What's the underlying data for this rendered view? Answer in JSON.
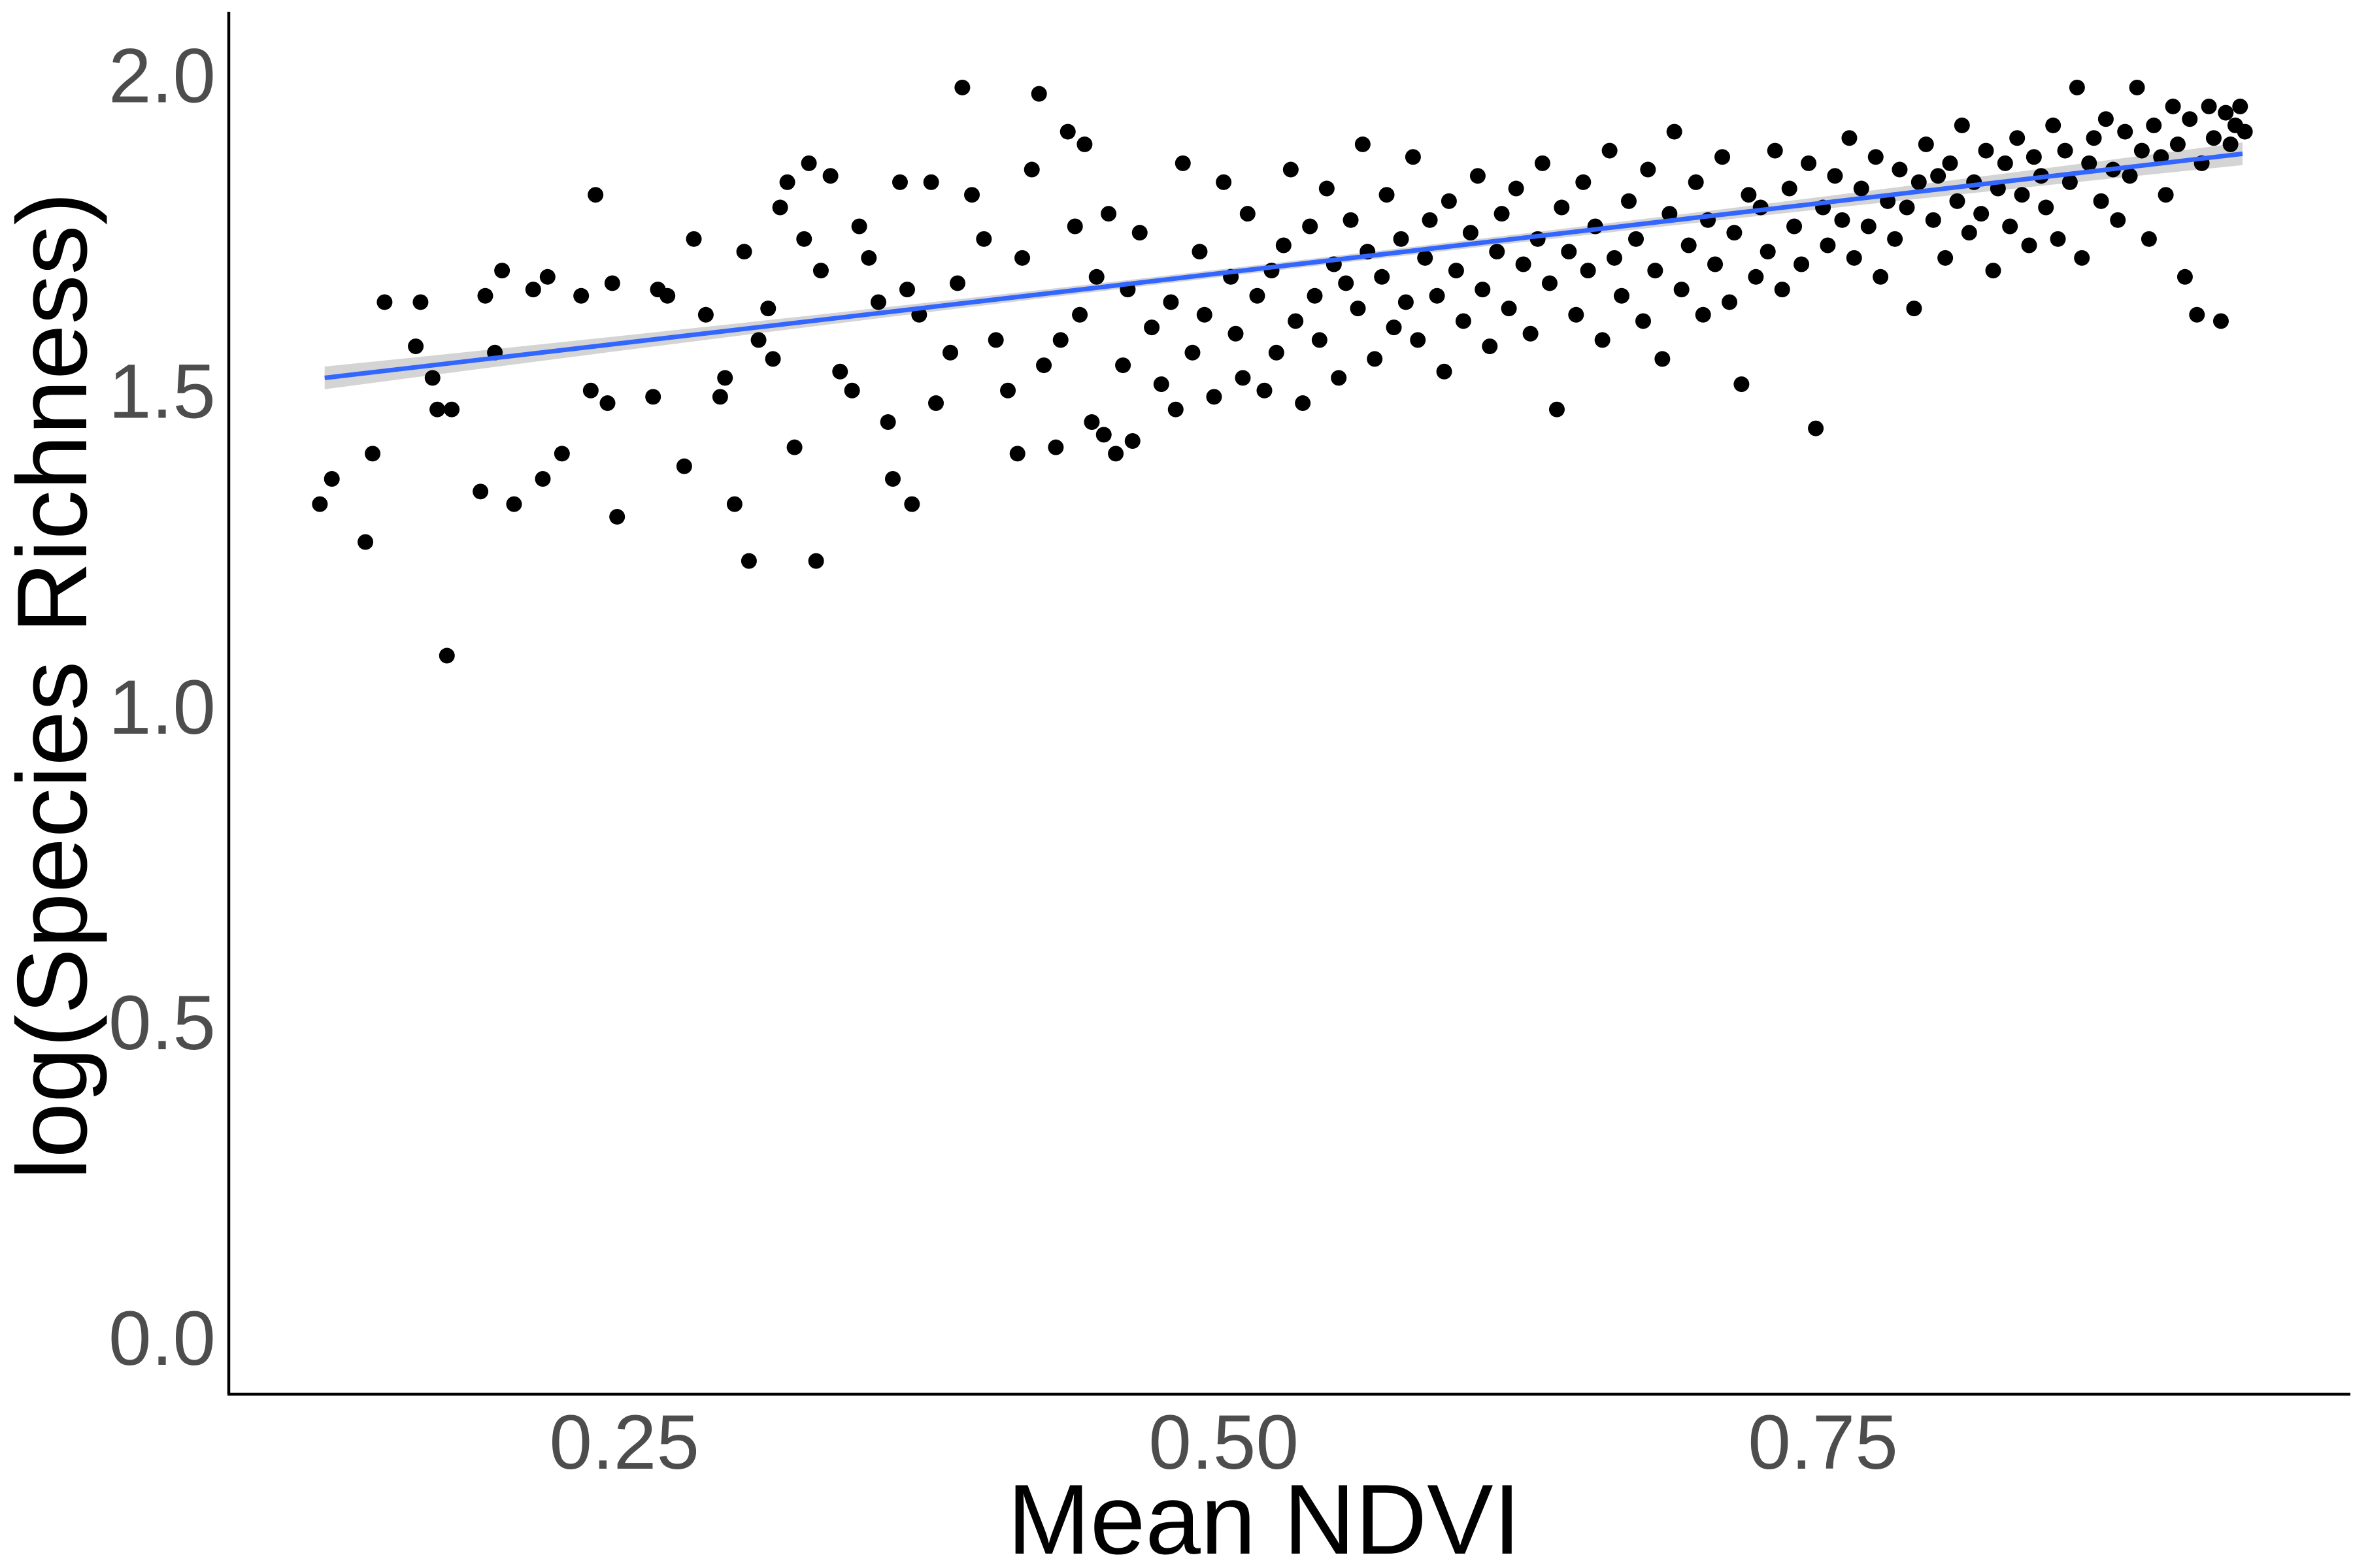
{
  "chart_data": {
    "type": "scatter",
    "title": "",
    "xlabel": "Mean NDVI",
    "ylabel": "log(Species Richness)",
    "xlim": [
      0.085,
      0.97
    ],
    "ylim": [
      -0.09,
      2.1
    ],
    "x_ticks": [
      0.25,
      0.5,
      0.75
    ],
    "x_tick_labels": [
      "0.25",
      "0.50",
      "0.75"
    ],
    "y_ticks": [
      0.0,
      0.5,
      1.0,
      1.5,
      2.0
    ],
    "y_tick_labels": [
      "0.0",
      "0.5",
      "1.0",
      "1.5",
      "2.0"
    ],
    "grid": false,
    "legend": "none",
    "colors": {
      "points": "#000000",
      "trend": "#3366ff",
      "ci_band": "#cccccc",
      "ticks": "#4d4d4d",
      "axis": "#000000"
    },
    "trend_line": {
      "type": "linear fit with confidence band",
      "x": [
        0.125,
        0.925
      ],
      "y": [
        1.52,
        1.875
      ]
    },
    "points": [
      [
        0.123,
        1.32
      ],
      [
        0.128,
        1.36
      ],
      [
        0.142,
        1.26
      ],
      [
        0.145,
        1.4
      ],
      [
        0.15,
        1.64
      ],
      [
        0.163,
        1.57
      ],
      [
        0.165,
        1.64
      ],
      [
        0.17,
        1.52
      ],
      [
        0.172,
        1.47
      ],
      [
        0.176,
        1.08
      ],
      [
        0.178,
        1.47
      ],
      [
        0.19,
        1.34
      ],
      [
        0.192,
        1.65
      ],
      [
        0.196,
        1.56
      ],
      [
        0.199,
        1.69
      ],
      [
        0.204,
        1.32
      ],
      [
        0.212,
        1.66
      ],
      [
        0.216,
        1.36
      ],
      [
        0.218,
        1.68
      ],
      [
        0.224,
        1.4
      ],
      [
        0.232,
        1.65
      ],
      [
        0.236,
        1.5
      ],
      [
        0.238,
        1.81
      ],
      [
        0.243,
        1.48
      ],
      [
        0.245,
        1.67
      ],
      [
        0.247,
        1.3
      ],
      [
        0.262,
        1.49
      ],
      [
        0.264,
        1.66
      ],
      [
        0.268,
        1.65
      ],
      [
        0.275,
        1.38
      ],
      [
        0.279,
        1.74
      ],
      [
        0.284,
        1.62
      ],
      [
        0.29,
        1.49
      ],
      [
        0.292,
        1.52
      ],
      [
        0.296,
        1.32
      ],
      [
        0.3,
        1.72
      ],
      [
        0.302,
        1.23
      ],
      [
        0.306,
        1.58
      ],
      [
        0.31,
        1.63
      ],
      [
        0.312,
        1.55
      ],
      [
        0.315,
        1.79
      ],
      [
        0.318,
        1.83
      ],
      [
        0.321,
        1.41
      ],
      [
        0.325,
        1.74
      ],
      [
        0.327,
        1.86
      ],
      [
        0.33,
        1.23
      ],
      [
        0.332,
        1.69
      ],
      [
        0.336,
        1.84
      ],
      [
        0.34,
        1.53
      ],
      [
        0.345,
        1.5
      ],
      [
        0.348,
        1.76
      ],
      [
        0.352,
        1.71
      ],
      [
        0.356,
        1.64
      ],
      [
        0.36,
        1.45
      ],
      [
        0.362,
        1.36
      ],
      [
        0.365,
        1.83
      ],
      [
        0.368,
        1.66
      ],
      [
        0.37,
        1.32
      ],
      [
        0.373,
        1.62
      ],
      [
        0.378,
        1.83
      ],
      [
        0.38,
        1.48
      ],
      [
        0.386,
        1.56
      ],
      [
        0.389,
        1.67
      ],
      [
        0.391,
        1.98
      ],
      [
        0.395,
        1.81
      ],
      [
        0.4,
        1.74
      ],
      [
        0.405,
        1.58
      ],
      [
        0.41,
        1.5
      ],
      [
        0.414,
        1.4
      ],
      [
        0.416,
        1.71
      ],
      [
        0.42,
        1.85
      ],
      [
        0.423,
        1.97
      ],
      [
        0.425,
        1.54
      ],
      [
        0.43,
        1.41
      ],
      [
        0.432,
        1.58
      ],
      [
        0.435,
        1.91
      ],
      [
        0.438,
        1.76
      ],
      [
        0.44,
        1.62
      ],
      [
        0.442,
        1.89
      ],
      [
        0.445,
        1.45
      ],
      [
        0.447,
        1.68
      ],
      [
        0.45,
        1.43
      ],
      [
        0.452,
        1.78
      ],
      [
        0.455,
        1.4
      ],
      [
        0.458,
        1.54
      ],
      [
        0.46,
        1.66
      ],
      [
        0.462,
        1.42
      ],
      [
        0.465,
        1.75
      ],
      [
        0.47,
        1.6
      ],
      [
        0.474,
        1.51
      ],
      [
        0.478,
        1.64
      ],
      [
        0.48,
        1.47
      ],
      [
        0.483,
        1.86
      ],
      [
        0.487,
        1.56
      ],
      [
        0.49,
        1.72
      ],
      [
        0.492,
        1.62
      ],
      [
        0.496,
        1.49
      ],
      [
        0.5,
        1.83
      ],
      [
        0.503,
        1.68
      ],
      [
        0.505,
        1.59
      ],
      [
        0.508,
        1.52
      ],
      [
        0.51,
        1.78
      ],
      [
        0.514,
        1.65
      ],
      [
        0.517,
        1.5
      ],
      [
        0.52,
        1.69
      ],
      [
        0.522,
        1.56
      ],
      [
        0.525,
        1.73
      ],
      [
        0.528,
        1.85
      ],
      [
        0.53,
        1.61
      ],
      [
        0.533,
        1.48
      ],
      [
        0.536,
        1.76
      ],
      [
        0.538,
        1.65
      ],
      [
        0.54,
        1.58
      ],
      [
        0.543,
        1.82
      ],
      [
        0.546,
        1.7
      ],
      [
        0.548,
        1.52
      ],
      [
        0.551,
        1.67
      ],
      [
        0.553,
        1.77
      ],
      [
        0.556,
        1.63
      ],
      [
        0.558,
        1.89
      ],
      [
        0.56,
        1.72
      ],
      [
        0.563,
        1.55
      ],
      [
        0.566,
        1.68
      ],
      [
        0.568,
        1.81
      ],
      [
        0.571,
        1.6
      ],
      [
        0.574,
        1.74
      ],
      [
        0.576,
        1.64
      ],
      [
        0.579,
        1.87
      ],
      [
        0.581,
        1.58
      ],
      [
        0.584,
        1.71
      ],
      [
        0.586,
        1.77
      ],
      [
        0.589,
        1.65
      ],
      [
        0.592,
        1.53
      ],
      [
        0.594,
        1.8
      ],
      [
        0.597,
        1.69
      ],
      [
        0.6,
        1.61
      ],
      [
        0.603,
        1.75
      ],
      [
        0.606,
        1.84
      ],
      [
        0.608,
        1.66
      ],
      [
        0.611,
        1.57
      ],
      [
        0.614,
        1.72
      ],
      [
        0.616,
        1.78
      ],
      [
        0.619,
        1.63
      ],
      [
        0.622,
        1.82
      ],
      [
        0.625,
        1.7
      ],
      [
        0.628,
        1.59
      ],
      [
        0.631,
        1.74
      ],
      [
        0.633,
        1.86
      ],
      [
        0.636,
        1.67
      ],
      [
        0.639,
        1.47
      ],
      [
        0.641,
        1.79
      ],
      [
        0.644,
        1.72
      ],
      [
        0.647,
        1.62
      ],
      [
        0.65,
        1.83
      ],
      [
        0.652,
        1.69
      ],
      [
        0.655,
        1.76
      ],
      [
        0.658,
        1.58
      ],
      [
        0.661,
        1.88
      ],
      [
        0.663,
        1.71
      ],
      [
        0.666,
        1.65
      ],
      [
        0.669,
        1.8
      ],
      [
        0.672,
        1.74
      ],
      [
        0.675,
        1.61
      ],
      [
        0.677,
        1.85
      ],
      [
        0.68,
        1.69
      ],
      [
        0.683,
        1.55
      ],
      [
        0.686,
        1.78
      ],
      [
        0.688,
        1.91
      ],
      [
        0.691,
        1.66
      ],
      [
        0.694,
        1.73
      ],
      [
        0.697,
        1.83
      ],
      [
        0.7,
        1.62
      ],
      [
        0.702,
        1.77
      ],
      [
        0.705,
        1.7
      ],
      [
        0.708,
        1.87
      ],
      [
        0.711,
        1.64
      ],
      [
        0.713,
        1.75
      ],
      [
        0.716,
        1.51
      ],
      [
        0.719,
        1.81
      ],
      [
        0.722,
        1.68
      ],
      [
        0.724,
        1.79
      ],
      [
        0.727,
        1.72
      ],
      [
        0.73,
        1.88
      ],
      [
        0.733,
        1.66
      ],
      [
        0.736,
        1.82
      ],
      [
        0.738,
        1.76
      ],
      [
        0.741,
        1.7
      ],
      [
        0.744,
        1.86
      ],
      [
        0.747,
        1.44
      ],
      [
        0.75,
        1.79
      ],
      [
        0.752,
        1.73
      ],
      [
        0.755,
        1.84
      ],
      [
        0.758,
        1.77
      ],
      [
        0.761,
        1.9
      ],
      [
        0.763,
        1.71
      ],
      [
        0.766,
        1.82
      ],
      [
        0.769,
        1.76
      ],
      [
        0.772,
        1.87
      ],
      [
        0.774,
        1.68
      ],
      [
        0.777,
        1.8
      ],
      [
        0.78,
        1.74
      ],
      [
        0.782,
        1.85
      ],
      [
        0.785,
        1.79
      ],
      [
        0.788,
        1.63
      ],
      [
        0.79,
        1.83
      ],
      [
        0.793,
        1.89
      ],
      [
        0.796,
        1.77
      ],
      [
        0.798,
        1.84
      ],
      [
        0.801,
        1.71
      ],
      [
        0.803,
        1.86
      ],
      [
        0.806,
        1.8
      ],
      [
        0.808,
        1.92
      ],
      [
        0.811,
        1.75
      ],
      [
        0.813,
        1.83
      ],
      [
        0.816,
        1.78
      ],
      [
        0.818,
        1.88
      ],
      [
        0.821,
        1.69
      ],
      [
        0.823,
        1.82
      ],
      [
        0.826,
        1.86
      ],
      [
        0.828,
        1.76
      ],
      [
        0.831,
        1.9
      ],
      [
        0.833,
        1.81
      ],
      [
        0.836,
        1.73
      ],
      [
        0.838,
        1.87
      ],
      [
        0.841,
        1.84
      ],
      [
        0.843,
        1.79
      ],
      [
        0.846,
        1.92
      ],
      [
        0.848,
        1.74
      ],
      [
        0.851,
        1.88
      ],
      [
        0.853,
        1.83
      ],
      [
        0.856,
        1.98
      ],
      [
        0.858,
        1.71
      ],
      [
        0.861,
        1.86
      ],
      [
        0.863,
        1.9
      ],
      [
        0.866,
        1.8
      ],
      [
        0.868,
        1.93
      ],
      [
        0.871,
        1.85
      ],
      [
        0.873,
        1.77
      ],
      [
        0.876,
        1.91
      ],
      [
        0.878,
        1.84
      ],
      [
        0.881,
        1.98
      ],
      [
        0.883,
        1.88
      ],
      [
        0.886,
        1.74
      ],
      [
        0.888,
        1.92
      ],
      [
        0.891,
        1.87
      ],
      [
        0.893,
        1.81
      ],
      [
        0.896,
        1.95
      ],
      [
        0.898,
        1.89
      ],
      [
        0.901,
        1.68
      ],
      [
        0.903,
        1.93
      ],
      [
        0.906,
        1.62
      ],
      [
        0.908,
        1.86
      ],
      [
        0.911,
        1.95
      ],
      [
        0.913,
        1.9
      ],
      [
        0.916,
        1.61
      ],
      [
        0.918,
        1.94
      ],
      [
        0.92,
        1.89
      ],
      [
        0.922,
        1.92
      ],
      [
        0.924,
        1.95
      ],
      [
        0.926,
        1.91
      ]
    ]
  }
}
